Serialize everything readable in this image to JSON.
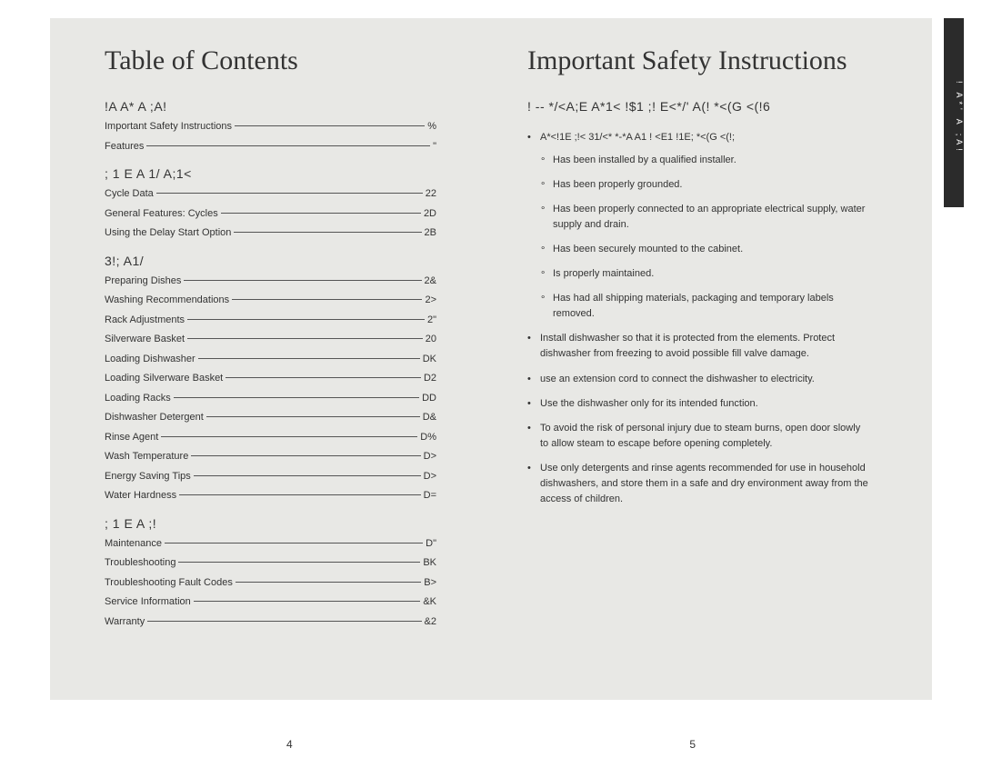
{
  "left": {
    "title": "Table of Contents",
    "sections": [
      {
        "heading": "!A  A*      A ;A!",
        "items": [
          {
            "label": "Important Safety Instructions",
            "page": "%"
          },
          {
            "label": "Features",
            "page": "\""
          }
        ]
      },
      {
        "heading": "; 1   E A  1/   A;1<",
        "items": [
          {
            "label": "Cycle Data",
            "page": "22"
          },
          {
            "label": "General Features: Cycles",
            "page": "2D"
          },
          {
            "label": "Using the Delay Start Option",
            "page": "2B"
          }
        ]
      },
      {
        "heading": "3!;      A1/",
        "items": [
          {
            "label": "Preparing Dishes",
            "page": "2&"
          },
          {
            "label": "Washing Recommendations",
            "page": "2>"
          },
          {
            "label": "Rack Adjustments",
            "page": "2\""
          },
          {
            "label": "Silverware Basket",
            "page": "20"
          },
          {
            "label": "Loading Dishwasher",
            "page": "DK"
          },
          {
            "label": "Loading Silverware Basket",
            "page": "D2"
          },
          {
            "label": "Loading Racks",
            "page": "DD"
          },
          {
            "label": "Dishwasher Detergent",
            "page": "D&"
          },
          {
            "label": "Rinse Agent",
            "page": "D%"
          },
          {
            "label": "Wash Temperature",
            "page": "D>"
          },
          {
            "label": "Energy Saving Tips",
            "page": "D>"
          },
          {
            "label": "Water Hardness",
            "page": "D="
          }
        ]
      },
      {
        "heading": "; 1   E A     ;!",
        "items": [
          {
            "label": "Maintenance",
            "page": "D\""
          },
          {
            "label": "Troubleshooting",
            "page": "BK"
          },
          {
            "label": "Troubleshooting Fault Codes",
            "page": "B>"
          },
          {
            "label": "Service Information",
            "page": "&K"
          },
          {
            "label": "Warranty",
            "page": "&2"
          }
        ]
      }
    ]
  },
  "right": {
    "title": "Important Safety Instructions",
    "heading": "!        -- */<A;E A*1<  !$1  ;!  E<*/'  A(!  *<(G  <(!6",
    "lead": "A*<!1E  ;!< 31/<*  *-*A A1    !  <E1  !1E;   *<(G <(!;",
    "sub": [
      "Has been installed by a qualified installer.",
      "Has been properly grounded.",
      "Has been properly connected to an appropriate electrical supply, water supply and drain.",
      "Has been securely mounted to the cabinet.",
      "Is properly maintained.",
      "Has had all shipping materials, packaging and temporary labels removed."
    ],
    "bullets": [
      "Install dishwasher so that it is protected from the elements. Protect dishwasher from freezing to avoid possible fill valve damage.",
      "            use an extension cord to connect the dishwasher to electricity.",
      "Use the dishwasher only for its intended function.",
      "To avoid the risk of personal injury due to steam burns, open door slowly to allow steam to escape before opening completely.",
      "Use only detergents and rinse agents recommended for use in household dishwashers, and store them in a safe and dry environment away from the access of children."
    ]
  },
  "side_tab": "! A*'    A ;A!",
  "page_left": "4",
  "page_right": "5",
  "colors": {
    "page_bg": "#e8e8e5",
    "text": "#333333",
    "tab_bg": "#2b2b2b"
  }
}
